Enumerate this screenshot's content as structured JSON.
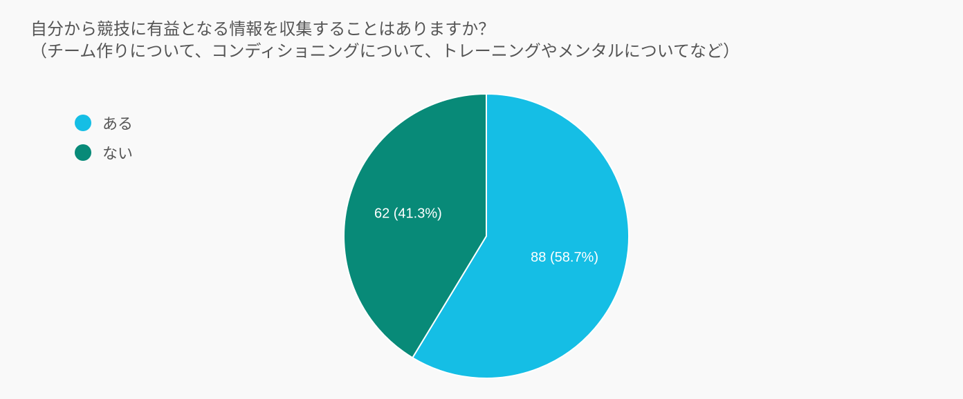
{
  "chart_data": {
    "type": "pie",
    "title": "自分から競技に有益となる情報を収集することはありますか？",
    "subtitle": "（チーム作りについて、コンディショニングについて、トレーニングやメンタルについてなど）",
    "legend_position": "left",
    "slices": [
      {
        "label": "ある",
        "value": 88,
        "percent": 58.7,
        "color": "#15bee5",
        "data_label": "88 (58.7%)"
      },
      {
        "label": "ない",
        "value": 62,
        "percent": 41.3,
        "color": "#088a78",
        "data_label": "62 (41.3%)"
      }
    ]
  }
}
